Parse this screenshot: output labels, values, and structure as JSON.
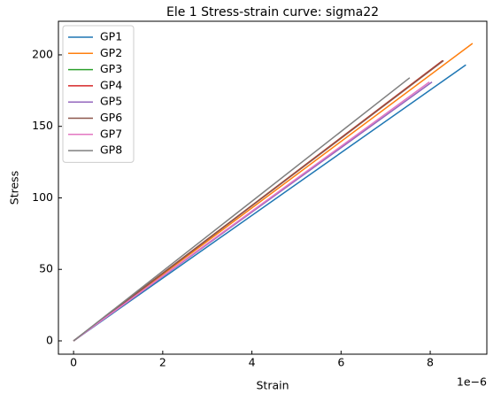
{
  "chart_data": {
    "type": "line",
    "title": "Ele 1 Stress-strain curve: sigma22",
    "xlabel": "Strain",
    "ylabel": "Stress",
    "x_offset_label": "1e−6",
    "xlim": [
      -0.34,
      9.27
    ],
    "ylim": [
      -9.3,
      223.5
    ],
    "xticks": [
      0,
      2,
      4,
      6,
      8
    ],
    "yticks": [
      0,
      50,
      100,
      150,
      200
    ],
    "legend": "upper left",
    "series": [
      {
        "name": "GP1",
        "color": "#1f77b4",
        "x": [
          0,
          8.8
        ],
        "values": [
          0,
          193
        ]
      },
      {
        "name": "GP2",
        "color": "#ff7f0e",
        "x": [
          0,
          8.95
        ],
        "values": [
          0,
          208
        ]
      },
      {
        "name": "GP3",
        "color": "#2ca02c",
        "x": [
          0,
          8.28
        ],
        "values": [
          0,
          196
        ]
      },
      {
        "name": "GP4",
        "color": "#d62728",
        "x": [
          0,
          8.28
        ],
        "values": [
          0,
          196
        ]
      },
      {
        "name": "GP5",
        "color": "#9467bd",
        "x": [
          0,
          8.04
        ],
        "values": [
          0,
          181
        ]
      },
      {
        "name": "GP6",
        "color": "#8c564b",
        "x": [
          0,
          8.3
        ],
        "values": [
          0,
          196
        ]
      },
      {
        "name": "GP7",
        "color": "#e377c2",
        "x": [
          0,
          7.98
        ],
        "values": [
          0,
          181
        ]
      },
      {
        "name": "GP8",
        "color": "#7f7f7f",
        "x": [
          0,
          7.54
        ],
        "values": [
          0,
          184
        ]
      }
    ]
  }
}
